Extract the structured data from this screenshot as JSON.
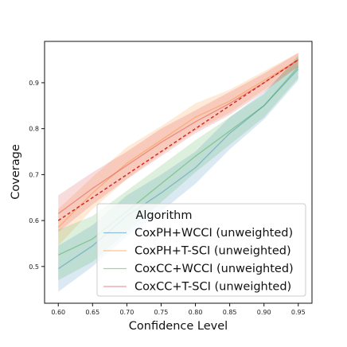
{
  "chart_data": {
    "type": "line",
    "title": "",
    "xlabel": "Confidence Level",
    "ylabel": "Coverage",
    "xlim": [
      0.58,
      0.97
    ],
    "ylim": [
      0.42,
      0.99
    ],
    "x_ticks": [
      0.6,
      0.65,
      0.7,
      0.75,
      0.8,
      0.85,
      0.9,
      0.95
    ],
    "x_tick_labels": [
      "0.60",
      "0.65",
      "0.70",
      "0.75",
      "0.80",
      "0.85",
      "0.90",
      "0.95"
    ],
    "y_ticks": [
      0.5,
      0.6,
      0.7,
      0.8,
      0.9
    ],
    "y_tick_labels": [
      "0.5",
      "0.6",
      "0.7",
      "0.8",
      "0.9"
    ],
    "grid": false,
    "legend": {
      "title": "Algorithm",
      "placement": "lower-right"
    },
    "x": [
      0.6,
      0.65,
      0.7,
      0.75,
      0.8,
      0.85,
      0.9,
      0.95
    ],
    "series": [
      {
        "name": "CoxPH+WCCI (unweighted)",
        "color": "#1f77b4",
        "values": [
          0.495,
          0.545,
          0.61,
          0.66,
          0.715,
          0.79,
          0.85,
          0.93
        ],
        "lower": [
          0.445,
          0.5,
          0.565,
          0.62,
          0.68,
          0.755,
          0.82,
          0.905
        ],
        "upper": [
          0.545,
          0.59,
          0.655,
          0.7,
          0.75,
          0.825,
          0.88,
          0.955
        ]
      },
      {
        "name": "CoxPH+T-SCI (unweighted)",
        "color": "#ff7f0e",
        "values": [
          0.585,
          0.66,
          0.725,
          0.775,
          0.825,
          0.86,
          0.905,
          0.95
        ],
        "lower": [
          0.545,
          0.625,
          0.69,
          0.745,
          0.795,
          0.835,
          0.885,
          0.935
        ],
        "upper": [
          0.625,
          0.695,
          0.76,
          0.805,
          0.855,
          0.885,
          0.925,
          0.965
        ]
      },
      {
        "name": "CoxCC+WCCI (unweighted)",
        "color": "#2ca02c",
        "values": [
          0.525,
          0.56,
          0.62,
          0.68,
          0.74,
          0.795,
          0.85,
          0.935
        ],
        "lower": [
          0.47,
          0.51,
          0.575,
          0.64,
          0.705,
          0.765,
          0.825,
          0.91
        ],
        "upper": [
          0.58,
          0.61,
          0.665,
          0.72,
          0.775,
          0.825,
          0.875,
          0.96
        ]
      },
      {
        "name": "CoxCC+T-SCI (unweighted)",
        "color": "#d62728",
        "values": [
          0.615,
          0.67,
          0.72,
          0.77,
          0.815,
          0.855,
          0.9,
          0.95
        ],
        "lower": [
          0.575,
          0.635,
          0.69,
          0.74,
          0.79,
          0.83,
          0.88,
          0.935
        ],
        "upper": [
          0.655,
          0.705,
          0.75,
          0.8,
          0.84,
          0.88,
          0.92,
          0.965
        ]
      }
    ],
    "reference_line": {
      "style": "dashed",
      "color": "#d62728",
      "x": [
        0.6,
        0.95
      ],
      "y": [
        0.6,
        0.95
      ]
    }
  }
}
